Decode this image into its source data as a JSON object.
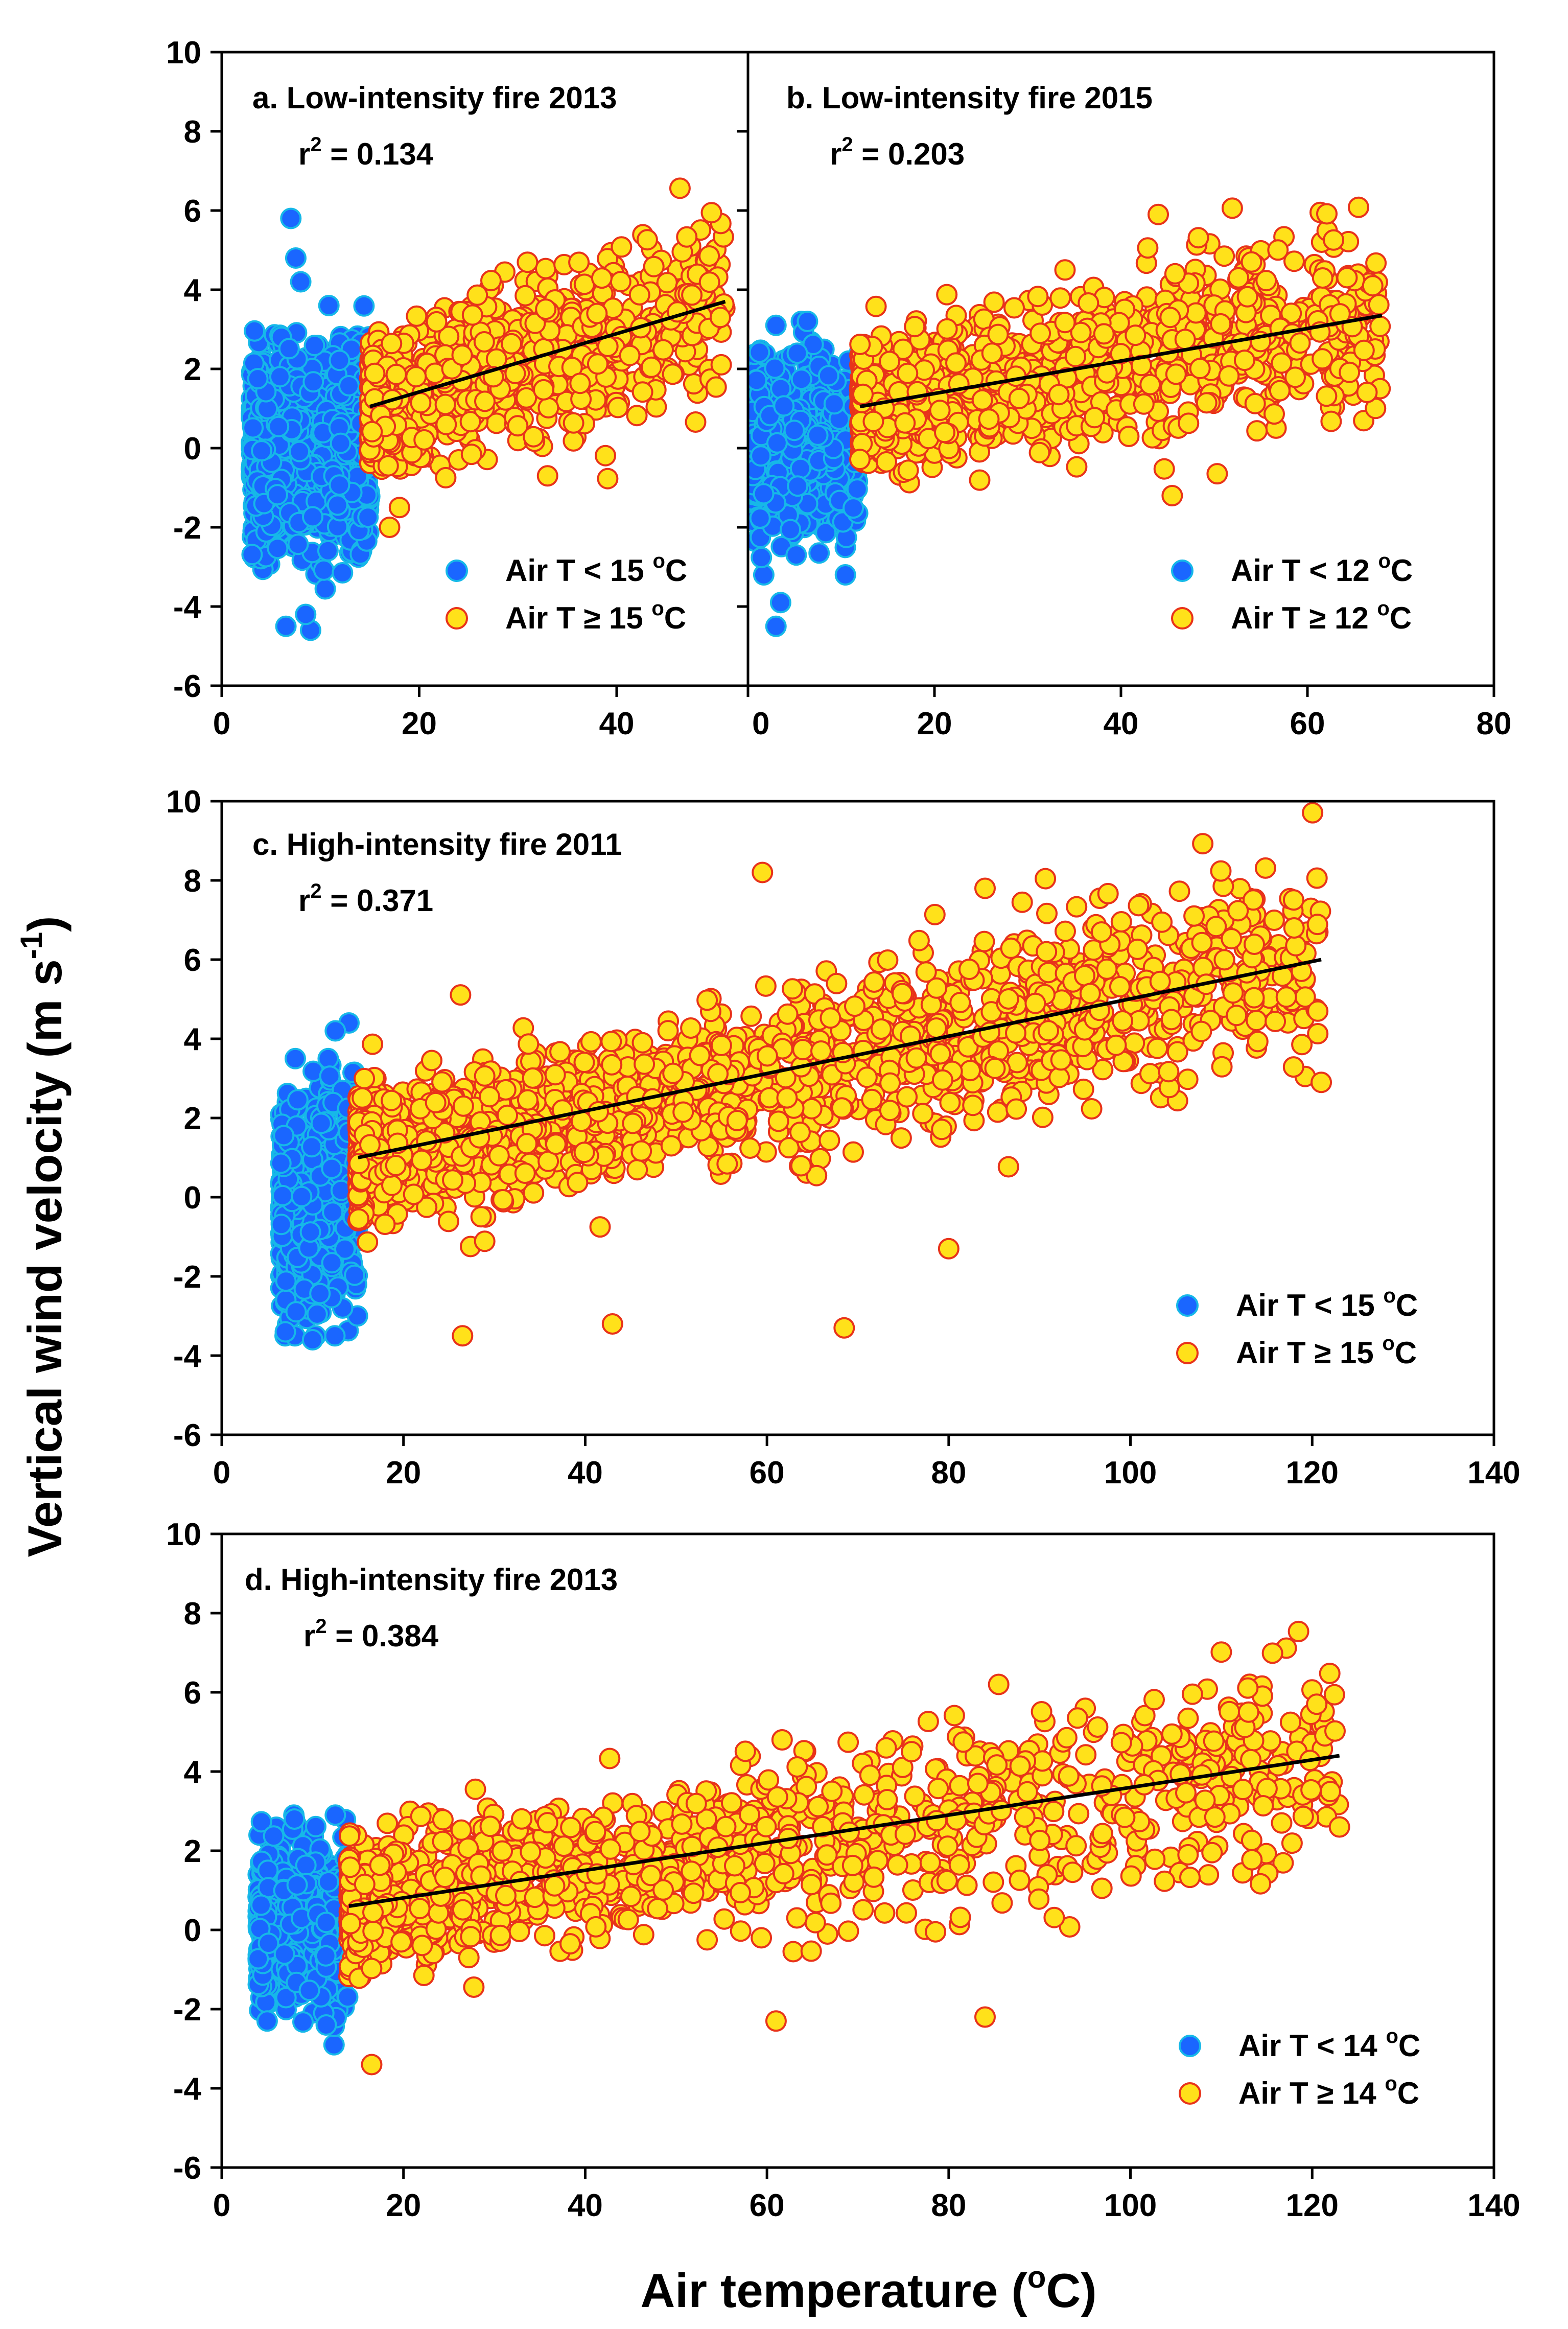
{
  "figure": {
    "ylabel": "Vertical wind velocity (m s",
    "ylabel_sup": "-1",
    "ylabel_end": ")",
    "xlabel": "Air temperature (",
    "xlabel_sup": "o",
    "xlabel_end": "C)"
  },
  "chart_data": [
    {
      "type": "scatter",
      "id": "a",
      "title": "a. Low-intensity fire 2013",
      "r2_label": "r",
      "r2_sup": "2",
      "r2_value": " = 0.134",
      "threshold_c": 15,
      "xlim": [
        0,
        53.3
      ],
      "ylim": [
        -6,
        10
      ],
      "xticks": [
        0,
        20,
        40
      ],
      "yticks": [
        -6,
        -4,
        -2,
        0,
        2,
        4,
        6,
        8,
        10
      ],
      "show_xtick_labels": true,
      "show_ytick_labels": true,
      "legend": [
        {
          "label": "Air T < 15 ",
          "sup": "o",
          "end": "C",
          "color": "#1a8cff"
        },
        {
          "label": "Air T ",
          "ge": "≥",
          "rest": " 15 ",
          "sup": "o",
          "end": "C",
          "color": "#ffee22"
        }
      ],
      "series": [
        {
          "name": "Air T < 15 °C",
          "color": "#1a66ff",
          "edge": "#16b8e8",
          "x_range": [
            3,
            15
          ],
          "y_center": 0.1,
          "y_spread": 3.0,
          "count": 900,
          "extremes": [
            [
              7,
              5.8
            ],
            [
              7.5,
              4.8
            ],
            [
              8,
              4.2
            ],
            [
              6.5,
              -4.5
            ],
            [
              9,
              -4.6
            ],
            [
              8.5,
              -4.2
            ]
          ]
        },
        {
          "name": "Air T ≥ 15 °C",
          "color": "#ffe11a",
          "edge": "#e8331a",
          "x_range": [
            15,
            51
          ],
          "count": 900,
          "extremes": [
            [
              50.5,
              3.3
            ],
            [
              38,
              3.4
            ],
            [
              17,
              -2.0
            ],
            [
              18,
              -1.5
            ],
            [
              33,
              -0.7
            ]
          ]
        }
      ],
      "fit": {
        "x": [
          15,
          51
        ],
        "y": [
          1.05,
          3.7
        ]
      }
    },
    {
      "type": "scatter",
      "id": "b",
      "title": "b. Low-intensity fire 2015",
      "r2_label": "r",
      "r2_sup": "2",
      "r2_value": " = 0.203",
      "threshold_c": 12,
      "xlim": [
        0,
        80
      ],
      "ylim": [
        -6,
        10
      ],
      "xticks": [
        0,
        20,
        40,
        60,
        80
      ],
      "yticks": [
        -6,
        -4,
        -2,
        0,
        2,
        4,
        6,
        8,
        10
      ],
      "show_xtick_labels": true,
      "show_ytick_labels": false,
      "legend": [
        {
          "label": "Air T < 12 ",
          "sup": "o",
          "end": "C",
          "color": "#1a8cff"
        },
        {
          "label": "Air T ",
          "ge": "≥",
          "rest": " 12 ",
          "sup": "o",
          "end": "C",
          "color": "#ffee22"
        }
      ],
      "series": [
        {
          "name": "Air T < 12 °C",
          "color": "#1a66ff",
          "edge": "#16b8e8",
          "x_range": [
            0.5,
            12
          ],
          "y_center": 0.0,
          "y_spread": 2.6,
          "count": 700,
          "extremes": [
            [
              3,
              -4.5
            ],
            [
              3.5,
              -3.9
            ],
            [
              3,
              3.1
            ]
          ]
        },
        {
          "name": "Air T ≥ 12 °C",
          "color": "#ffe11a",
          "edge": "#e8331a",
          "x_range": [
            12,
            68
          ],
          "count": 1100,
          "extremes": [
            [
              44,
              5.9
            ],
            [
              54,
              4.7
            ],
            [
              45.5,
              -1.2
            ],
            [
              34,
              4.5
            ],
            [
              67,
              4.1
            ]
          ]
        }
      ],
      "fit": {
        "x": [
          12,
          68
        ],
        "y": [
          1.05,
          3.35
        ]
      }
    },
    {
      "type": "scatter",
      "id": "c",
      "title": "c. High-intensity fire 2011",
      "r2_label": "r",
      "r2_sup": "2",
      "r2_value": " = 0.371",
      "threshold_c": 15,
      "xlim": [
        0,
        140
      ],
      "ylim": [
        -6,
        10
      ],
      "xticks": [
        0,
        20,
        40,
        60,
        80,
        100,
        120,
        140
      ],
      "yticks": [
        -6,
        -4,
        -2,
        0,
        2,
        4,
        6,
        8,
        10
      ],
      "show_xtick_labels": true,
      "show_ytick_labels": true,
      "legend": [
        {
          "label": "Air T < 15 ",
          "sup": "o",
          "end": "C",
          "color": "#1a8cff"
        },
        {
          "label": "Air T ",
          "ge": "≥",
          "rest": " 15 ",
          "sup": "o",
          "end": "C",
          "color": "#ffee22"
        }
      ],
      "series": [
        {
          "name": "Air T < 15 °C",
          "color": "#1a66ff",
          "edge": "#16b8e8",
          "x_range": [
            6.5,
            15
          ],
          "y_center": -0.1,
          "y_spread": 2.9,
          "count": 800,
          "extremes": [
            [
              14,
              4.4
            ],
            [
              12.5,
              4.2
            ],
            [
              10,
              -3.6
            ],
            [
              7,
              -3.4
            ]
          ]
        },
        {
          "name": "Air T ≥ 15 °C",
          "color": "#ffe11a",
          "edge": "#e8331a",
          "x_range": [
            15,
            121
          ],
          "count": 1900,
          "extremes": [
            [
              59.5,
              8.2
            ],
            [
              84,
              7.8
            ],
            [
              107,
              7.1
            ],
            [
              118,
              6.8
            ],
            [
              121,
              2.9
            ],
            [
              68.5,
              -3.3
            ],
            [
              26.5,
              -3.5
            ],
            [
              43,
              -3.2
            ],
            [
              80,
              -1.3
            ]
          ]
        }
      ],
      "fit": {
        "x": [
          15,
          121
        ],
        "y": [
          1.0,
          6.0
        ]
      }
    },
    {
      "type": "scatter",
      "id": "d",
      "title": "d. High-intensity fire 2013",
      "r2_label": "r",
      "r2_sup": "2",
      "r2_value": " = 0.384",
      "threshold_c": 14,
      "xlim": [
        0,
        140
      ],
      "ylim": [
        -6,
        10
      ],
      "xticks": [
        0,
        20,
        40,
        60,
        80,
        100,
        120,
        140
      ],
      "yticks": [
        -6,
        -4,
        -2,
        0,
        2,
        4,
        6,
        8,
        10
      ],
      "show_xtick_labels": true,
      "show_ytick_labels": true,
      "legend": [
        {
          "label": "Air T < 14 ",
          "sup": "o",
          "end": "C",
          "color": "#1a8cff"
        },
        {
          "label": "Air T ",
          "ge": "≥",
          "rest": " 14 ",
          "sup": "o",
          "end": "C",
          "color": "#ffee22"
        }
      ],
      "series": [
        {
          "name": "Air T < 14 °C",
          "color": "#1a66ff",
          "edge": "#16b8e8",
          "x_range": [
            4,
            14
          ],
          "y_center": 0.0,
          "y_spread": 2.3,
          "count": 700,
          "extremes": [
            [
              8,
              2.8
            ],
            [
              12.5,
              2.9
            ],
            [
              5,
              -2.3
            ],
            [
              11.5,
              -2.4
            ]
          ]
        },
        {
          "name": "Air T ≥ 14 °C",
          "color": "#ffe11a",
          "edge": "#e8331a",
          "x_range": [
            14,
            123
          ],
          "count": 1300,
          "extremes": [
            [
              85.5,
              6.2
            ],
            [
              120.5,
              5.7
            ],
            [
              16.5,
              -3.4
            ],
            [
              84,
              -2.2
            ],
            [
              61,
              -2.3
            ],
            [
              123,
              2.6
            ],
            [
              113,
              5.5
            ]
          ]
        }
      ],
      "fit": {
        "x": [
          14,
          123
        ],
        "y": [
          0.6,
          4.4
        ]
      }
    }
  ]
}
